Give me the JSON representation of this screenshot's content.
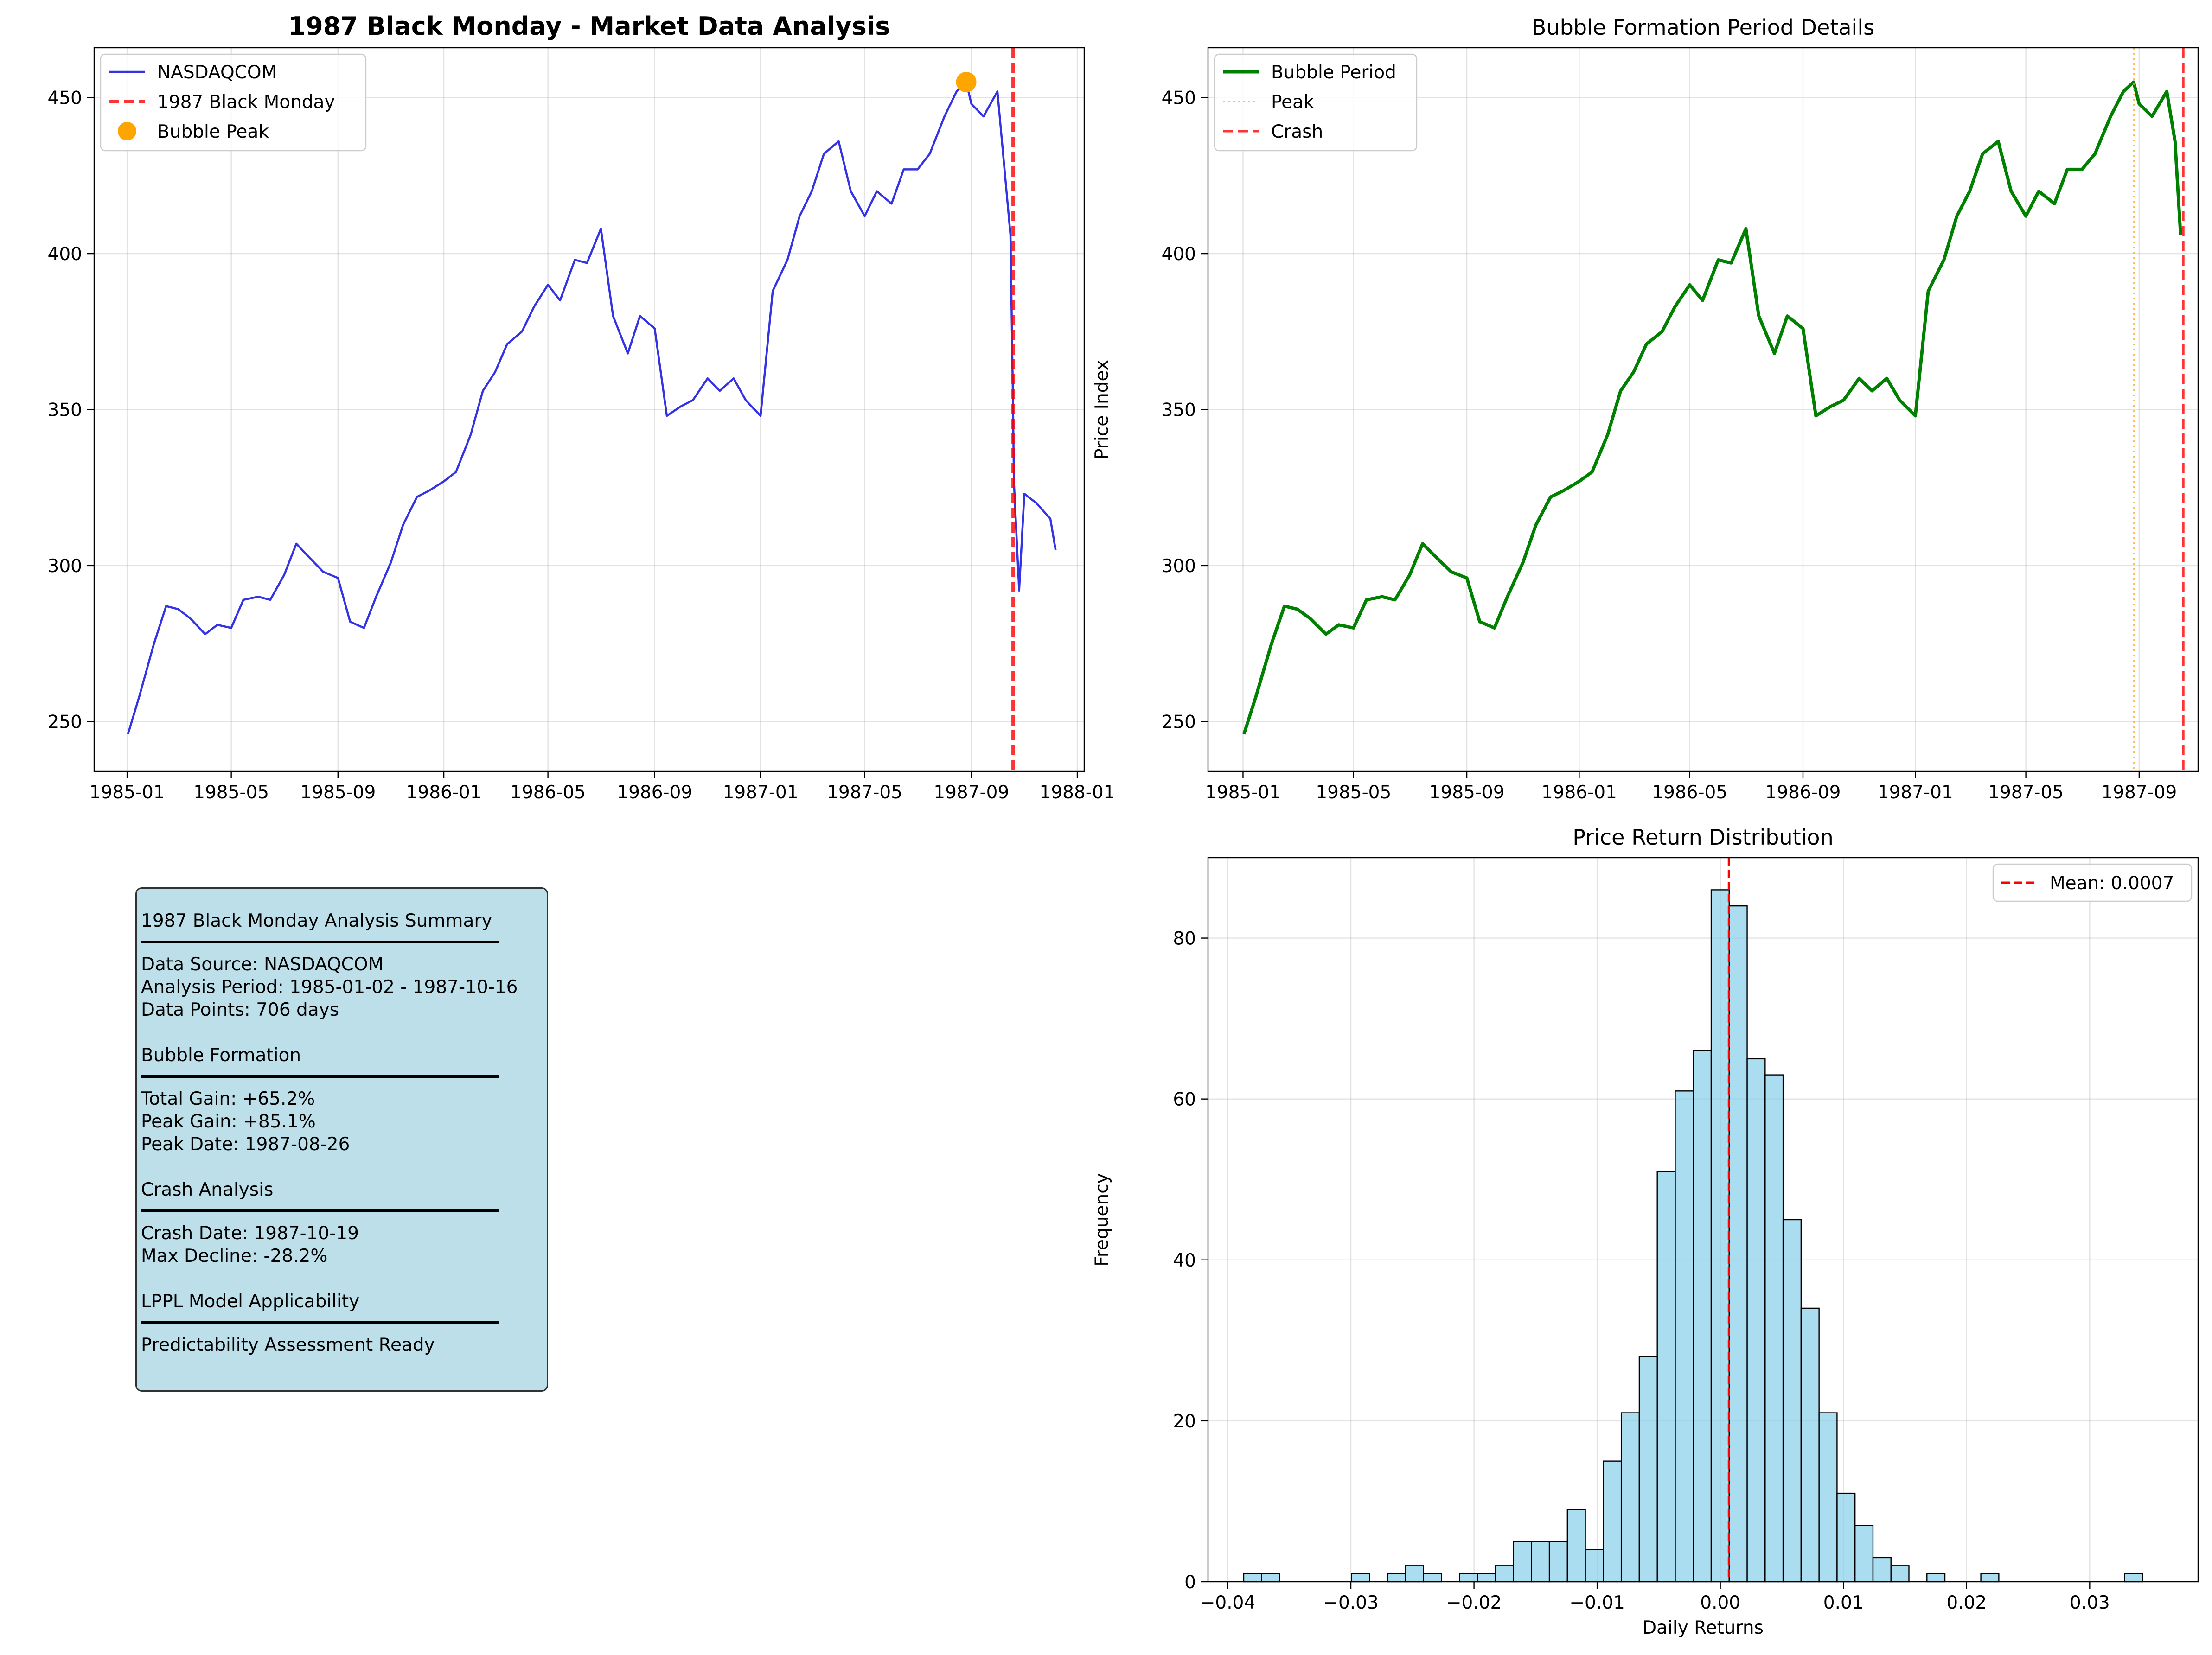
{
  "chart_data": [
    {
      "type": "line",
      "title": "1987 Black Monday - Market Data Analysis",
      "xlabel": "",
      "ylabel": "Price Index",
      "xlim": [
        "1984-11-24",
        "1988-01-09"
      ],
      "ylim": [
        234,
        466
      ],
      "x_ticks": [
        "1985-01",
        "1985-05",
        "1985-09",
        "1986-01",
        "1986-05",
        "1986-09",
        "1987-01",
        "1987-05",
        "1987-09",
        "1988-01"
      ],
      "y_ticks": [
        250,
        300,
        350,
        400,
        450
      ],
      "grid": true,
      "legend": "top-left",
      "series": [
        {
          "name": "NASDAQCOM",
          "color": "#0000dd",
          "points": [
            [
              "1985-01-02",
              246
            ],
            [
              "1985-01-15",
              258
            ],
            [
              "1985-02-01",
              275
            ],
            [
              "1985-02-15",
              287
            ],
            [
              "1985-03-01",
              286
            ],
            [
              "1985-03-15",
              283
            ],
            [
              "1985-04-01",
              278
            ],
            [
              "1985-04-15",
              281
            ],
            [
              "1985-05-01",
              280
            ],
            [
              "1985-05-15",
              289
            ],
            [
              "1985-06-01",
              290
            ],
            [
              "1985-06-15",
              289
            ],
            [
              "1985-07-01",
              297
            ],
            [
              "1985-07-15",
              307
            ],
            [
              "1985-08-01",
              302
            ],
            [
              "1985-08-15",
              298
            ],
            [
              "1985-09-01",
              296
            ],
            [
              "1985-09-15",
              282
            ],
            [
              "1985-10-01",
              280
            ],
            [
              "1985-10-15",
              290
            ],
            [
              "1985-11-01",
              301
            ],
            [
              "1985-11-15",
              313
            ],
            [
              "1985-12-01",
              322
            ],
            [
              "1985-12-15",
              324
            ],
            [
              "1986-01-01",
              327
            ],
            [
              "1986-01-15",
              330
            ],
            [
              "1986-02-01",
              342
            ],
            [
              "1986-02-15",
              356
            ],
            [
              "1986-03-01",
              362
            ],
            [
              "1986-03-15",
              371
            ],
            [
              "1986-04-01",
              375
            ],
            [
              "1986-04-15",
              383
            ],
            [
              "1986-05-01",
              390
            ],
            [
              "1986-05-15",
              385
            ],
            [
              "1986-06-01",
              398
            ],
            [
              "1986-06-15",
              397
            ],
            [
              "1986-07-01",
              408
            ],
            [
              "1986-07-15",
              380
            ],
            [
              "1986-08-01",
              368
            ],
            [
              "1986-08-15",
              380
            ],
            [
              "1986-09-01",
              376
            ],
            [
              "1986-09-15",
              348
            ],
            [
              "1986-10-01",
              351
            ],
            [
              "1986-10-15",
              353
            ],
            [
              "1986-11-01",
              360
            ],
            [
              "1986-11-15",
              356
            ],
            [
              "1986-12-01",
              360
            ],
            [
              "1986-12-15",
              353
            ],
            [
              "1987-01-01",
              348
            ],
            [
              "1987-01-15",
              388
            ],
            [
              "1987-02-01",
              398
            ],
            [
              "1987-02-15",
              412
            ],
            [
              "1987-03-01",
              420
            ],
            [
              "1987-03-15",
              432
            ],
            [
              "1987-04-01",
              436
            ],
            [
              "1987-04-15",
              420
            ],
            [
              "1987-05-01",
              412
            ],
            [
              "1987-05-15",
              420
            ],
            [
              "1987-06-01",
              416
            ],
            [
              "1987-06-15",
              427
            ],
            [
              "1987-07-01",
              427
            ],
            [
              "1987-07-15",
              432
            ],
            [
              "1987-08-01",
              444
            ],
            [
              "1987-08-15",
              452
            ],
            [
              "1987-08-26",
              455
            ],
            [
              "1987-09-01",
              448
            ],
            [
              "1987-09-15",
              444
            ],
            [
              "1987-10-01",
              452
            ],
            [
              "1987-10-16",
              406
            ],
            [
              "1987-10-19",
              351
            ],
            [
              "1987-10-20",
              327
            ],
            [
              "1987-10-26",
              292
            ],
            [
              "1987-11-01",
              323
            ],
            [
              "1987-11-15",
              320
            ],
            [
              "1987-12-01",
              315
            ],
            [
              "1987-12-07",
              305
            ]
          ]
        },
        {
          "name": "1987 Black Monday",
          "type": "vline",
          "x": "1987-10-19",
          "color": "#ff0000"
        },
        {
          "name": "Bubble Peak",
          "type": "scatter",
          "points": [
            [
              "1987-08-26",
              455
            ]
          ],
          "color": "#ffa500"
        }
      ]
    },
    {
      "type": "line",
      "title": "Bubble Formation Period Details",
      "xlabel": "",
      "ylabel": "Price Index",
      "xlim": [
        "1984-11-24",
        "1987-11-04"
      ],
      "ylim": [
        234,
        466
      ],
      "x_ticks": [
        "1985-01",
        "1985-05",
        "1985-09",
        "1986-01",
        "1986-05",
        "1986-09",
        "1987-01",
        "1987-05",
        "1987-09"
      ],
      "y_ticks": [
        250,
        300,
        350,
        400,
        450
      ],
      "grid": true,
      "legend": "top-left",
      "series": [
        {
          "name": "Bubble Period",
          "color": "#008000",
          "points": [
            [
              "1985-01-02",
              246
            ],
            [
              "1985-01-15",
              258
            ],
            [
              "1985-02-01",
              275
            ],
            [
              "1985-02-15",
              287
            ],
            [
              "1985-03-01",
              286
            ],
            [
              "1985-03-15",
              283
            ],
            [
              "1985-04-01",
              278
            ],
            [
              "1985-04-15",
              281
            ],
            [
              "1985-05-01",
              280
            ],
            [
              "1985-05-15",
              289
            ],
            [
              "1985-06-01",
              290
            ],
            [
              "1985-06-15",
              289
            ],
            [
              "1985-07-01",
              297
            ],
            [
              "1985-07-15",
              307
            ],
            [
              "1985-08-01",
              302
            ],
            [
              "1985-08-15",
              298
            ],
            [
              "1985-09-01",
              296
            ],
            [
              "1985-09-15",
              282
            ],
            [
              "1985-10-01",
              280
            ],
            [
              "1985-10-15",
              290
            ],
            [
              "1985-11-01",
              301
            ],
            [
              "1985-11-15",
              313
            ],
            [
              "1985-12-01",
              322
            ],
            [
              "1985-12-15",
              324
            ],
            [
              "1986-01-01",
              327
            ],
            [
              "1986-01-15",
              330
            ],
            [
              "1986-02-01",
              342
            ],
            [
              "1986-02-15",
              356
            ],
            [
              "1986-03-01",
              362
            ],
            [
              "1986-03-15",
              371
            ],
            [
              "1986-04-01",
              375
            ],
            [
              "1986-04-15",
              383
            ],
            [
              "1986-05-01",
              390
            ],
            [
              "1986-05-15",
              385
            ],
            [
              "1986-06-01",
              398
            ],
            [
              "1986-06-15",
              397
            ],
            [
              "1986-07-01",
              408
            ],
            [
              "1986-07-15",
              380
            ],
            [
              "1986-08-01",
              368
            ],
            [
              "1986-08-15",
              380
            ],
            [
              "1986-09-01",
              376
            ],
            [
              "1986-09-15",
              348
            ],
            [
              "1986-10-01",
              351
            ],
            [
              "1986-10-15",
              353
            ],
            [
              "1986-11-01",
              360
            ],
            [
              "1986-11-15",
              356
            ],
            [
              "1986-12-01",
              360
            ],
            [
              "1986-12-15",
              353
            ],
            [
              "1987-01-01",
              348
            ],
            [
              "1987-01-15",
              388
            ],
            [
              "1987-02-01",
              398
            ],
            [
              "1987-02-15",
              412
            ],
            [
              "1987-03-01",
              420
            ],
            [
              "1987-03-15",
              432
            ],
            [
              "1987-04-01",
              436
            ],
            [
              "1987-04-15",
              420
            ],
            [
              "1987-05-01",
              412
            ],
            [
              "1987-05-15",
              420
            ],
            [
              "1987-06-01",
              416
            ],
            [
              "1987-06-15",
              427
            ],
            [
              "1987-07-01",
              427
            ],
            [
              "1987-07-15",
              432
            ],
            [
              "1987-08-01",
              444
            ],
            [
              "1987-08-15",
              452
            ],
            [
              "1987-08-26",
              455
            ],
            [
              "1987-09-01",
              448
            ],
            [
              "1987-09-15",
              444
            ],
            [
              "1987-10-01",
              452
            ],
            [
              "1987-10-10",
              436
            ],
            [
              "1987-10-16",
              406
            ]
          ]
        },
        {
          "name": "Peak",
          "type": "vline",
          "x": "1987-08-26",
          "color": "#ffa500"
        },
        {
          "name": "Crash",
          "type": "vline",
          "x": "1987-10-19",
          "color": "#ff0000"
        }
      ]
    },
    {
      "type": "bar",
      "title": "Price Return Distribution",
      "xlabel": "Daily Returns",
      "ylabel": "Frequency",
      "xlim": [
        -0.0416,
        0.0388
      ],
      "ylim": [
        0,
        90
      ],
      "x_ticks": [
        -0.04,
        -0.03,
        -0.02,
        -0.01,
        0.0,
        0.01,
        0.02,
        0.03
      ],
      "x_tick_labels": [
        "−0.04",
        "−0.03",
        "−0.02",
        "−0.01",
        "0.00",
        "0.01",
        "0.02",
        "0.03"
      ],
      "y_ticks": [
        0,
        20,
        40,
        60,
        80
      ],
      "grid": true,
      "legend": "top-right",
      "bar_color": "#87ceeb",
      "bin_start": -0.0387,
      "bin_width": 0.00146,
      "values": [
        1,
        1,
        0,
        0,
        0,
        0,
        1,
        0,
        1,
        2,
        1,
        0,
        1,
        1,
        2,
        5,
        5,
        5,
        9,
        4,
        15,
        21,
        28,
        51,
        61,
        66,
        86,
        84,
        65,
        63,
        45,
        34,
        21,
        11,
        7,
        3,
        2,
        0,
        1,
        0,
        0,
        1,
        0,
        0,
        0,
        0,
        0,
        0,
        0,
        1
      ],
      "mean_line": {
        "name": "Mean: 0.0007",
        "x": 0.0007,
        "color": "#ff0000"
      }
    }
  ],
  "summary": {
    "title": "1987 Black Monday Analysis Summary",
    "source": "Data Source: NASDAQCOM",
    "period": "Analysis Period: 1985-01-02 - 1987-10-16",
    "points": "Data Points: 706 days",
    "bubble_head": "Bubble Formation",
    "total_gain": "Total Gain: +65.2%",
    "peak_gain": "Peak Gain: +85.1%",
    "peak_date": "Peak Date: 1987-08-26",
    "crash_head": "Crash Analysis",
    "crash_date": "Crash Date: 1987-10-19",
    "max_decline": "Max Decline: -28.2%",
    "lppl_head": "LPPL Model Applicability",
    "assessment": "Predictability Assessment Ready",
    "box_color": "#add8e6"
  }
}
